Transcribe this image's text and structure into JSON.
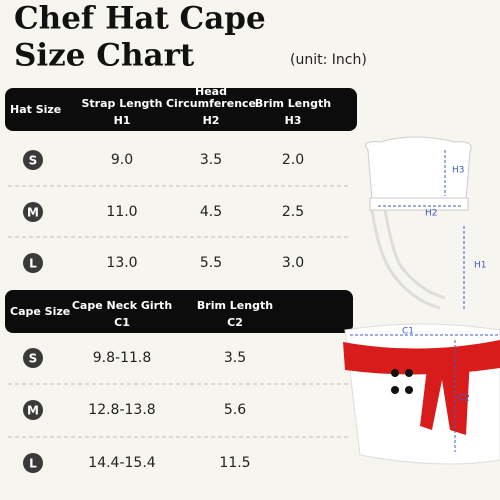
{
  "title": [
    "Chef Hat Cape",
    "Size Chart"
  ],
  "unit": "(unit: Inch)",
  "hat_table": {
    "header": [
      {
        "label": [
          "Hat Size"
        ]
      },
      {
        "label": [
          "Strap Length"
        ],
        "code": "H1"
      },
      {
        "label": [
          "Head",
          "Circumference"
        ],
        "code": "H2"
      },
      {
        "label": [
          "Brim Length"
        ],
        "code": "H3"
      }
    ],
    "rows": [
      [
        "S",
        "9.0",
        "3.5",
        "2.0"
      ],
      [
        "M",
        "11.0",
        "4.5",
        "2.5"
      ],
      [
        "L",
        "13.0",
        "5.5",
        "3.0"
      ]
    ]
  },
  "cape_table": {
    "header": [
      {
        "label": [
          "Cape Size"
        ]
      },
      {
        "label": [
          "Cape Neck Girth"
        ],
        "code": "C1"
      },
      {
        "label": [
          "Brim Length"
        ],
        "code": "C2"
      }
    ],
    "rows": [
      [
        "S",
        "9.8-11.8",
        "3.5"
      ],
      [
        "M",
        "12.8-13.8",
        "5.6"
      ],
      [
        "L",
        "14.4-15.4",
        "11.5"
      ]
    ]
  },
  "diagram": {
    "hat_labels": [
      "H3",
      "H2",
      "H1"
    ],
    "cape_labels": [
      "C1",
      "C2"
    ]
  }
}
